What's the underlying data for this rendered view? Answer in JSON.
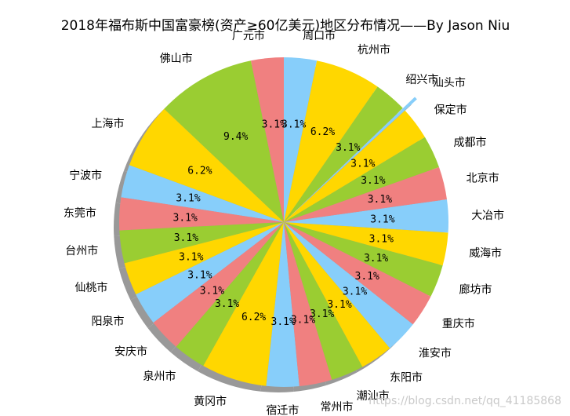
{
  "watermark": "https://blog.csdn.net/qq_41185868",
  "chart_data": {
    "type": "pie",
    "title": "2018年福布斯中国富豪榜(资产≥60亿美元)地区分布情况——By Jason Niu",
    "start_angle_deg": 90,
    "direction": "counterclockwise",
    "shadow": true,
    "exploded": [
      "汕头市"
    ],
    "palette": [
      "#F08080",
      "#87CEFA",
      "#FFD700",
      "#9ACD32"
    ],
    "slices": [
      {
        "label": "广元市",
        "value": 3.1,
        "pct_label": "3.1%",
        "color": "#F08080"
      },
      {
        "label": "佛山市",
        "value": 9.4,
        "pct_label": "9.4%",
        "color": "#9ACD32"
      },
      {
        "label": "上海市",
        "value": 6.2,
        "pct_label": "6.2%",
        "color": "#FFD700"
      },
      {
        "label": "宁波市",
        "value": 3.1,
        "pct_label": "3.1%",
        "color": "#87CEFA"
      },
      {
        "label": "东莞市",
        "value": 3.1,
        "pct_label": "3.1%",
        "color": "#F08080"
      },
      {
        "label": "台州市",
        "value": 3.1,
        "pct_label": "3.1%",
        "color": "#9ACD32"
      },
      {
        "label": "仙桃市",
        "value": 3.1,
        "pct_label": "3.1%",
        "color": "#FFD700"
      },
      {
        "label": "阳泉市",
        "value": 3.1,
        "pct_label": "3.1%",
        "color": "#87CEFA"
      },
      {
        "label": "安庆市",
        "value": 3.1,
        "pct_label": "3.1%",
        "color": "#F08080"
      },
      {
        "label": "泉州市",
        "value": 3.1,
        "pct_label": "3.1%",
        "color": "#9ACD32"
      },
      {
        "label": "黄冈市",
        "value": 6.2,
        "pct_label": "6.2%",
        "color": "#FFD700"
      },
      {
        "label": "宿迁市",
        "value": 3.1,
        "pct_label": "3.1%",
        "color": "#87CEFA"
      },
      {
        "label": "常州市",
        "value": 3.1,
        "pct_label": "3.1%",
        "color": "#F08080"
      },
      {
        "label": "潮汕市",
        "value": 3.1,
        "pct_label": "3.1%",
        "color": "#9ACD32"
      },
      {
        "label": "东阳市",
        "value": 3.1,
        "pct_label": "3.1%",
        "color": "#FFD700"
      },
      {
        "label": "淮安市",
        "value": 3.1,
        "pct_label": "3.1%",
        "color": "#87CEFA"
      },
      {
        "label": "重庆市",
        "value": 3.1,
        "pct_label": "3.1%",
        "color": "#F08080"
      },
      {
        "label": "廊坊市",
        "value": 3.1,
        "pct_label": "3.1%",
        "color": "#9ACD32"
      },
      {
        "label": "威海市",
        "value": 3.1,
        "pct_label": "3.1%",
        "color": "#FFD700"
      },
      {
        "label": "大冶市",
        "value": 3.1,
        "pct_label": "3.1%",
        "color": "#87CEFA"
      },
      {
        "label": "北京市",
        "value": 3.1,
        "pct_label": "3.1%",
        "color": "#F08080"
      },
      {
        "label": "成都市",
        "value": 3.1,
        "pct_label": "3.1%",
        "color": "#9ACD32"
      },
      {
        "label": "保定市",
        "value": 3.1,
        "pct_label": "3.1%",
        "color": "#FFD700"
      },
      {
        "label": "汕头市",
        "value": 0.3,
        "pct_label": "",
        "color": "#87CEFA"
      },
      {
        "label": "绍兴市",
        "value": 3.1,
        "pct_label": "3.1%",
        "color": "#9ACD32"
      },
      {
        "label": "杭州市",
        "value": 6.2,
        "pct_label": "6.2%",
        "color": "#FFD700"
      },
      {
        "label": "周口市",
        "value": 3.1,
        "pct_label": "3.1%",
        "color": "#87CEFA"
      }
    ]
  }
}
